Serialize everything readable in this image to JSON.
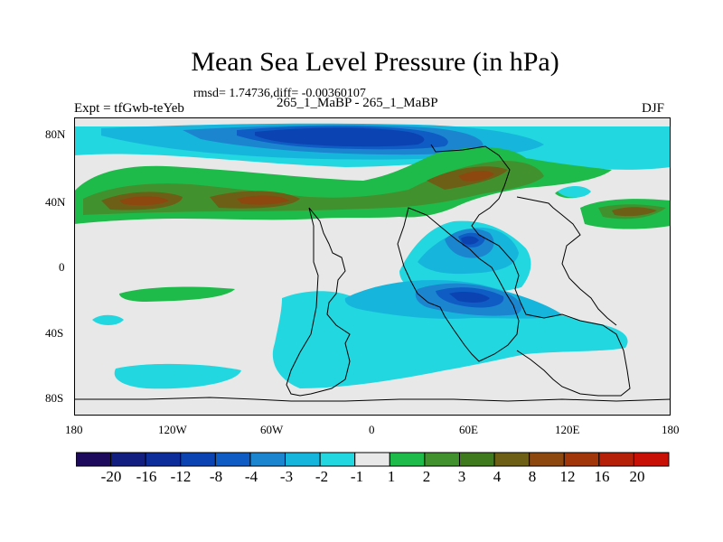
{
  "title": "Mean Sea Level Pressure (in hPa)",
  "stats": "rmsd= 1.74736,diff= -0.00360107",
  "expt_label": "Expt = tfGwb-teYeb",
  "case_label": "265_1_MaBP - 265_1_MaBP",
  "season": "DJF",
  "x_ticks": [
    "180",
    "120W",
    "60W",
    "0",
    "60E",
    "120E",
    "180"
  ],
  "y_ticks": [
    "80N",
    "40N",
    "0",
    "40S",
    "80S"
  ],
  "colorbar": {
    "colors": [
      "#1e0a5c",
      "#121f80",
      "#0d2d9b",
      "#0b43b3",
      "#0e5cc4",
      "#1b86cf",
      "#16b6dc",
      "#22d7e0",
      "#e8e8e8",
      "#1fbb4a",
      "#41922f",
      "#3f7a1f",
      "#6e5f16",
      "#8d4810",
      "#a1360b",
      "#b52008",
      "#c81006"
    ],
    "labels": [
      "-20",
      "-16",
      "-12",
      "-8",
      "-4",
      "-3",
      "-2",
      "-1",
      "1",
      "2",
      "3",
      "4",
      "8",
      "12",
      "16",
      "20"
    ]
  }
}
